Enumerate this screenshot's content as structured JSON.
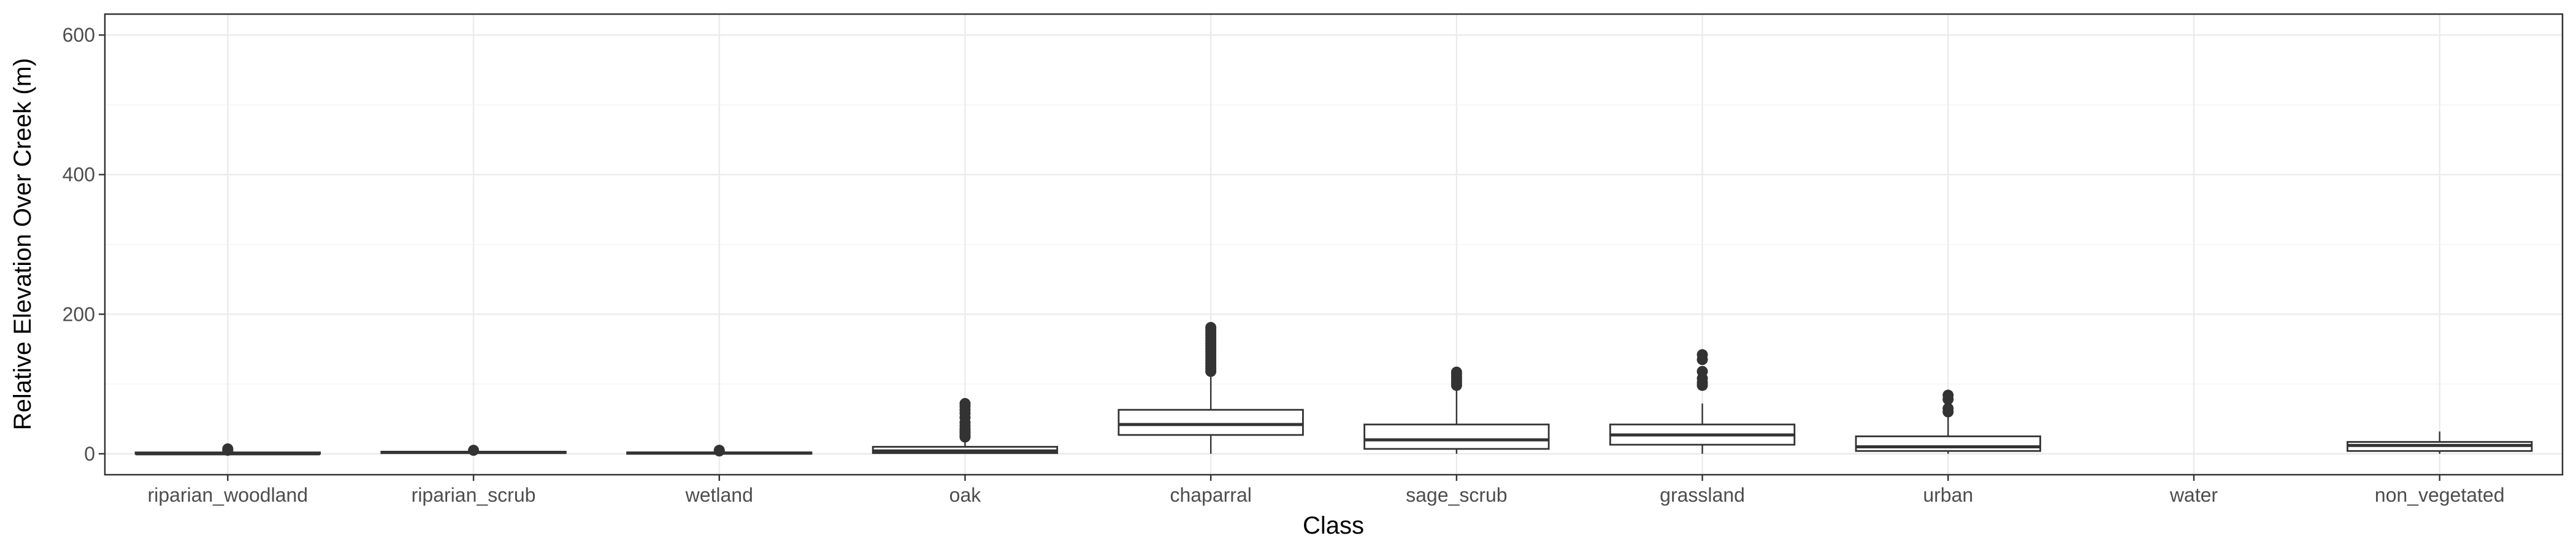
{
  "chart_data": {
    "type": "boxplot",
    "xlabel": "Class",
    "ylabel": "Relative Elevation Over Creek (m)",
    "ylim": [
      -30,
      630
    ],
    "yticks": [
      0,
      200,
      400,
      600
    ],
    "grid": true,
    "categories": [
      "riparian_woodland",
      "riparian_scrub",
      "wetland",
      "oak",
      "chaparral",
      "sage_scrub",
      "grassland",
      "urban",
      "water",
      "non_vegetated"
    ],
    "boxes": [
      {
        "category": "riparian_woodland",
        "min": 0,
        "q1": 0,
        "median": 0,
        "q3": 2,
        "max": 4,
        "outliers": [
          5,
          7
        ]
      },
      {
        "category": "riparian_scrub",
        "min": 0,
        "q1": 1,
        "median": 2,
        "q3": 3,
        "max": 4,
        "outliers": [
          5
        ]
      },
      {
        "category": "wetland",
        "min": 0,
        "q1": 0,
        "median": 1,
        "q3": 2,
        "max": 3,
        "outliers": [
          4,
          5
        ]
      },
      {
        "category": "oak",
        "min": 0,
        "q1": 1,
        "median": 4,
        "q3": 10,
        "max": 22,
        "outliers": [
          24,
          27,
          30,
          33,
          36,
          40,
          45,
          52,
          58,
          63,
          68,
          72
        ]
      },
      {
        "category": "chaparral",
        "min": 0,
        "q1": 27,
        "median": 42,
        "q3": 63,
        "max": 115,
        "outliers": [
          118,
          122,
          126,
          130,
          134,
          138,
          142,
          146,
          150,
          154,
          158,
          162,
          166,
          170,
          174,
          178,
          181
        ]
      },
      {
        "category": "sage_scrub",
        "min": 0,
        "q1": 7,
        "median": 20,
        "q3": 42,
        "max": 92,
        "outliers": [
          98,
          102,
          106,
          110,
          114,
          117
        ]
      },
      {
        "category": "grassland",
        "min": 0,
        "q1": 13,
        "median": 27,
        "q3": 42,
        "max": 72,
        "outliers": [
          98,
          102,
          108,
          118,
          135,
          142
        ]
      },
      {
        "category": "urban",
        "min": 0,
        "q1": 4,
        "median": 10,
        "q3": 25,
        "max": 55,
        "outliers": [
          60,
          65,
          78,
          84
        ]
      },
      {
        "category": "water",
        "min": null,
        "q1": null,
        "median": null,
        "q3": null,
        "max": null,
        "outliers": []
      },
      {
        "category": "non_vegetated",
        "min": 0,
        "q1": 4,
        "median": 12,
        "q3": 17,
        "max": 32,
        "outliers": []
      }
    ]
  }
}
